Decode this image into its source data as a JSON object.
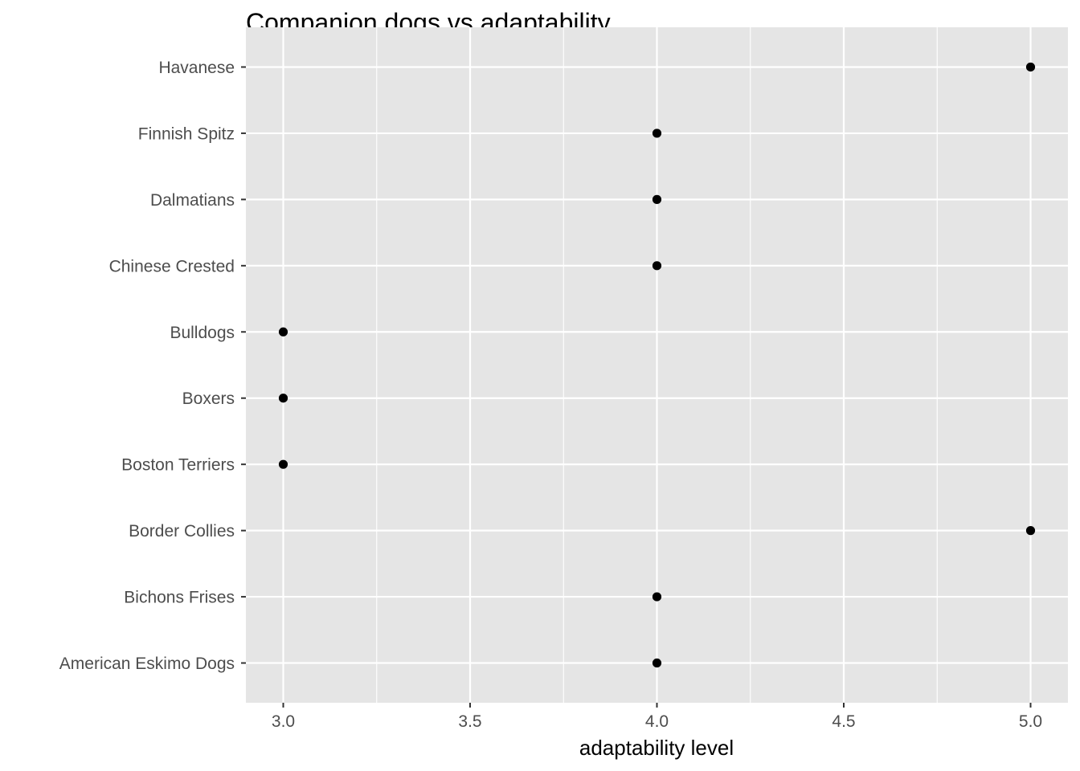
{
  "chart_data": {
    "type": "scatter",
    "title": "Companion dogs vs adaptability",
    "xlabel": "adaptability level",
    "ylabel": "",
    "xlim": [
      2.9,
      5.1
    ],
    "x_ticks": [
      "3.0",
      "3.5",
      "4.0",
      "4.5",
      "5.0"
    ],
    "x_tick_values": [
      3.0,
      3.5,
      4.0,
      4.5,
      5.0
    ],
    "x_minor_values": [
      3.25,
      3.75,
      4.25,
      4.75
    ],
    "categories": [
      "American Eskimo Dogs",
      "Bichons Frises",
      "Border Collies",
      "Boston Terriers",
      "Boxers",
      "Bulldogs",
      "Chinese Crested",
      "Dalmatians",
      "Finnish Spitz",
      "Havanese"
    ],
    "values": [
      4,
      4,
      5,
      3,
      3,
      3,
      4,
      4,
      4,
      5
    ],
    "grid": true,
    "legend": "none",
    "colors": {
      "panel": "#e5e5e5",
      "grid": "#ffffff",
      "point": "#000000",
      "tick": "#333333"
    }
  }
}
